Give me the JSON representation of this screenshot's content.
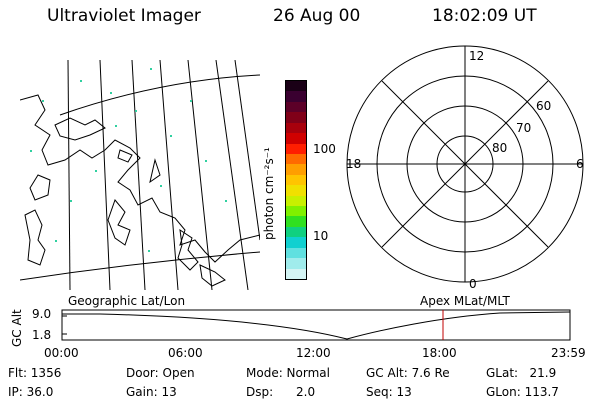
{
  "header": {
    "instrument": "Ultraviolet Imager",
    "date": "26 Aug 00",
    "time": "18:02:09 UT"
  },
  "colorbar": {
    "unit_label": "photon cm⁻²s⁻¹",
    "ticks": [
      "100",
      "10"
    ],
    "colors": [
      "#1a0016",
      "#3a0030",
      "#5c0028",
      "#800018",
      "#a8000c",
      "#d00000",
      "#ff1e00",
      "#ff6a00",
      "#ff9e00",
      "#ffc400",
      "#f0e000",
      "#c8f000",
      "#80f000",
      "#30e020",
      "#10d080",
      "#10d0d0",
      "#60e0e0",
      "#a0ecec",
      "#d4f4f4"
    ]
  },
  "polar_plot": {
    "mlt_labels": {
      "top": "12",
      "left": "18",
      "right": "6",
      "bottom": "0"
    },
    "lat_labels": [
      "60",
      "70",
      "80"
    ]
  },
  "timeline": {
    "left_label": "Geographic Lat/Lon",
    "right_label": "Apex MLat/MLT",
    "axis_label": "GC Alt",
    "y_labels": [
      "9.0",
      "1.8"
    ],
    "x_labels": [
      "00:00",
      "06:00",
      "12:00",
      "18:00",
      "23:59"
    ],
    "marker_time": "18:02",
    "marker_color": "#c00000"
  },
  "info": {
    "flt": "Flt: 1356",
    "ip": "IP: 36.0",
    "door": "Door: Open",
    "gain": "Gain: 13",
    "mode": "Mode: Normal",
    "dsp": "Dsp:      2.0",
    "gc_alt": "GC Alt: 7.6 Re",
    "seq": "Seq: 13",
    "glat": "GLat:   21.9",
    "glon": "GLon: 113.7"
  }
}
